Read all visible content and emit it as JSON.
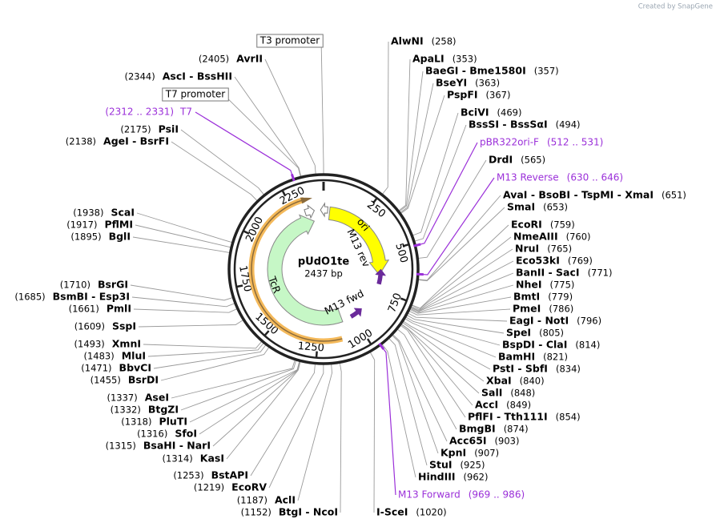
{
  "watermark": "Created by SnapGene",
  "plasmid": {
    "name": "pUdO1te",
    "length": "2437 bp"
  },
  "ring_ticks": [
    250,
    500,
    750,
    1000,
    1250,
    1500,
    1750,
    2000,
    2250
  ],
  "features": [
    "ori",
    "M13 rev",
    "M13 fwd",
    "TcR"
  ],
  "promoters": [
    "T3 promoter",
    "T7 promoter"
  ],
  "primers": [
    {
      "name": "T7",
      "range": "(2312 .. 2331)"
    },
    {
      "name": "pBR322ori-F",
      "range": "(512 .. 531)"
    },
    {
      "name": "M13 Reverse",
      "range": "(630 .. 646)"
    },
    {
      "name": "M13 Forward",
      "range": "(969 .. 986)"
    }
  ],
  "sites_right": [
    {
      "name": "AlwNI",
      "position": "(258)"
    },
    {
      "name": "ApaLI",
      "position": "(353)"
    },
    {
      "name": "BaeGI - Bme1580I",
      "position": "(357)"
    },
    {
      "name": "BseYI",
      "position": "(363)"
    },
    {
      "name": "PspFI",
      "position": "(367)"
    },
    {
      "name": "BciVI",
      "position": "(469)"
    },
    {
      "name": "BssSI - BssSαI",
      "position": "(494)"
    },
    {
      "name": "DrdI",
      "position": "(565)"
    },
    {
      "name": "AvaI - BsoBI - TspMI - XmaI",
      "position": "(651)"
    },
    {
      "name": "SmaI",
      "position": "(653)"
    },
    {
      "name": "EcoRI",
      "position": "(759)"
    },
    {
      "name": "NmeAIII",
      "position": "(760)"
    },
    {
      "name": "NruI",
      "position": "(765)"
    },
    {
      "name": "Eco53kI",
      "position": "(769)"
    },
    {
      "name": "BanII - SacI",
      "position": "(771)"
    },
    {
      "name": "NheI",
      "position": "(775)"
    },
    {
      "name": "BmtI",
      "position": "(779)"
    },
    {
      "name": "PmeI",
      "position": "(786)"
    },
    {
      "name": "EagI - NotI",
      "position": "(796)"
    },
    {
      "name": "SpeI",
      "position": "(805)"
    },
    {
      "name": "BspDI - ClaI",
      "position": "(814)"
    },
    {
      "name": "BamHI",
      "position": "(821)"
    },
    {
      "name": "PstI - SbfI",
      "position": "(834)"
    },
    {
      "name": "XbaI",
      "position": "(840)"
    },
    {
      "name": "SalI",
      "position": "(848)"
    },
    {
      "name": "AccI",
      "position": "(849)"
    },
    {
      "name": "PflFI - Tth111I",
      "position": "(854)"
    },
    {
      "name": "BmgBI",
      "position": "(874)"
    },
    {
      "name": "Acc65I",
      "position": "(903)"
    },
    {
      "name": "KpnI",
      "position": "(907)"
    },
    {
      "name": "StuI",
      "position": "(925)"
    },
    {
      "name": "HindIII",
      "position": "(962)"
    },
    {
      "name": "I-SceI",
      "position": "(1020)"
    }
  ],
  "sites_left": [
    {
      "name": "AvrII",
      "position": "(2405)"
    },
    {
      "name": "AscI - BssHII",
      "position": "(2344)"
    },
    {
      "name": "PsiI",
      "position": "(2175)"
    },
    {
      "name": "AgeI - BsrFI",
      "position": "(2138)"
    },
    {
      "name": "ScaI",
      "position": "(1938)"
    },
    {
      "name": "PflMI",
      "position": "(1917)"
    },
    {
      "name": "BglI",
      "position": "(1895)"
    },
    {
      "name": "BsrGI",
      "position": "(1710)"
    },
    {
      "name": "BsmBI - Esp3I",
      "position": "(1685)"
    },
    {
      "name": "PmlI",
      "position": "(1661)"
    },
    {
      "name": "SspI",
      "position": "(1609)"
    },
    {
      "name": "XmnI",
      "position": "(1493)"
    },
    {
      "name": "MluI",
      "position": "(1483)"
    },
    {
      "name": "BbvCI",
      "position": "(1471)"
    },
    {
      "name": "BsrDI",
      "position": "(1455)"
    },
    {
      "name": "AseI",
      "position": "(1337)"
    },
    {
      "name": "BtgZI",
      "position": "(1332)"
    },
    {
      "name": "PluTI",
      "position": "(1318)"
    },
    {
      "name": "SfoI",
      "position": "(1316)"
    },
    {
      "name": "BsaHI - NarI",
      "position": "(1315)"
    },
    {
      "name": "KasI",
      "position": "(1314)"
    },
    {
      "name": "BstAPI",
      "position": "(1253)"
    },
    {
      "name": "EcoRV",
      "position": "(1219)"
    },
    {
      "name": "AclI",
      "position": "(1187)"
    },
    {
      "name": "BtgI - NcoI",
      "position": "(1152)"
    }
  ]
}
